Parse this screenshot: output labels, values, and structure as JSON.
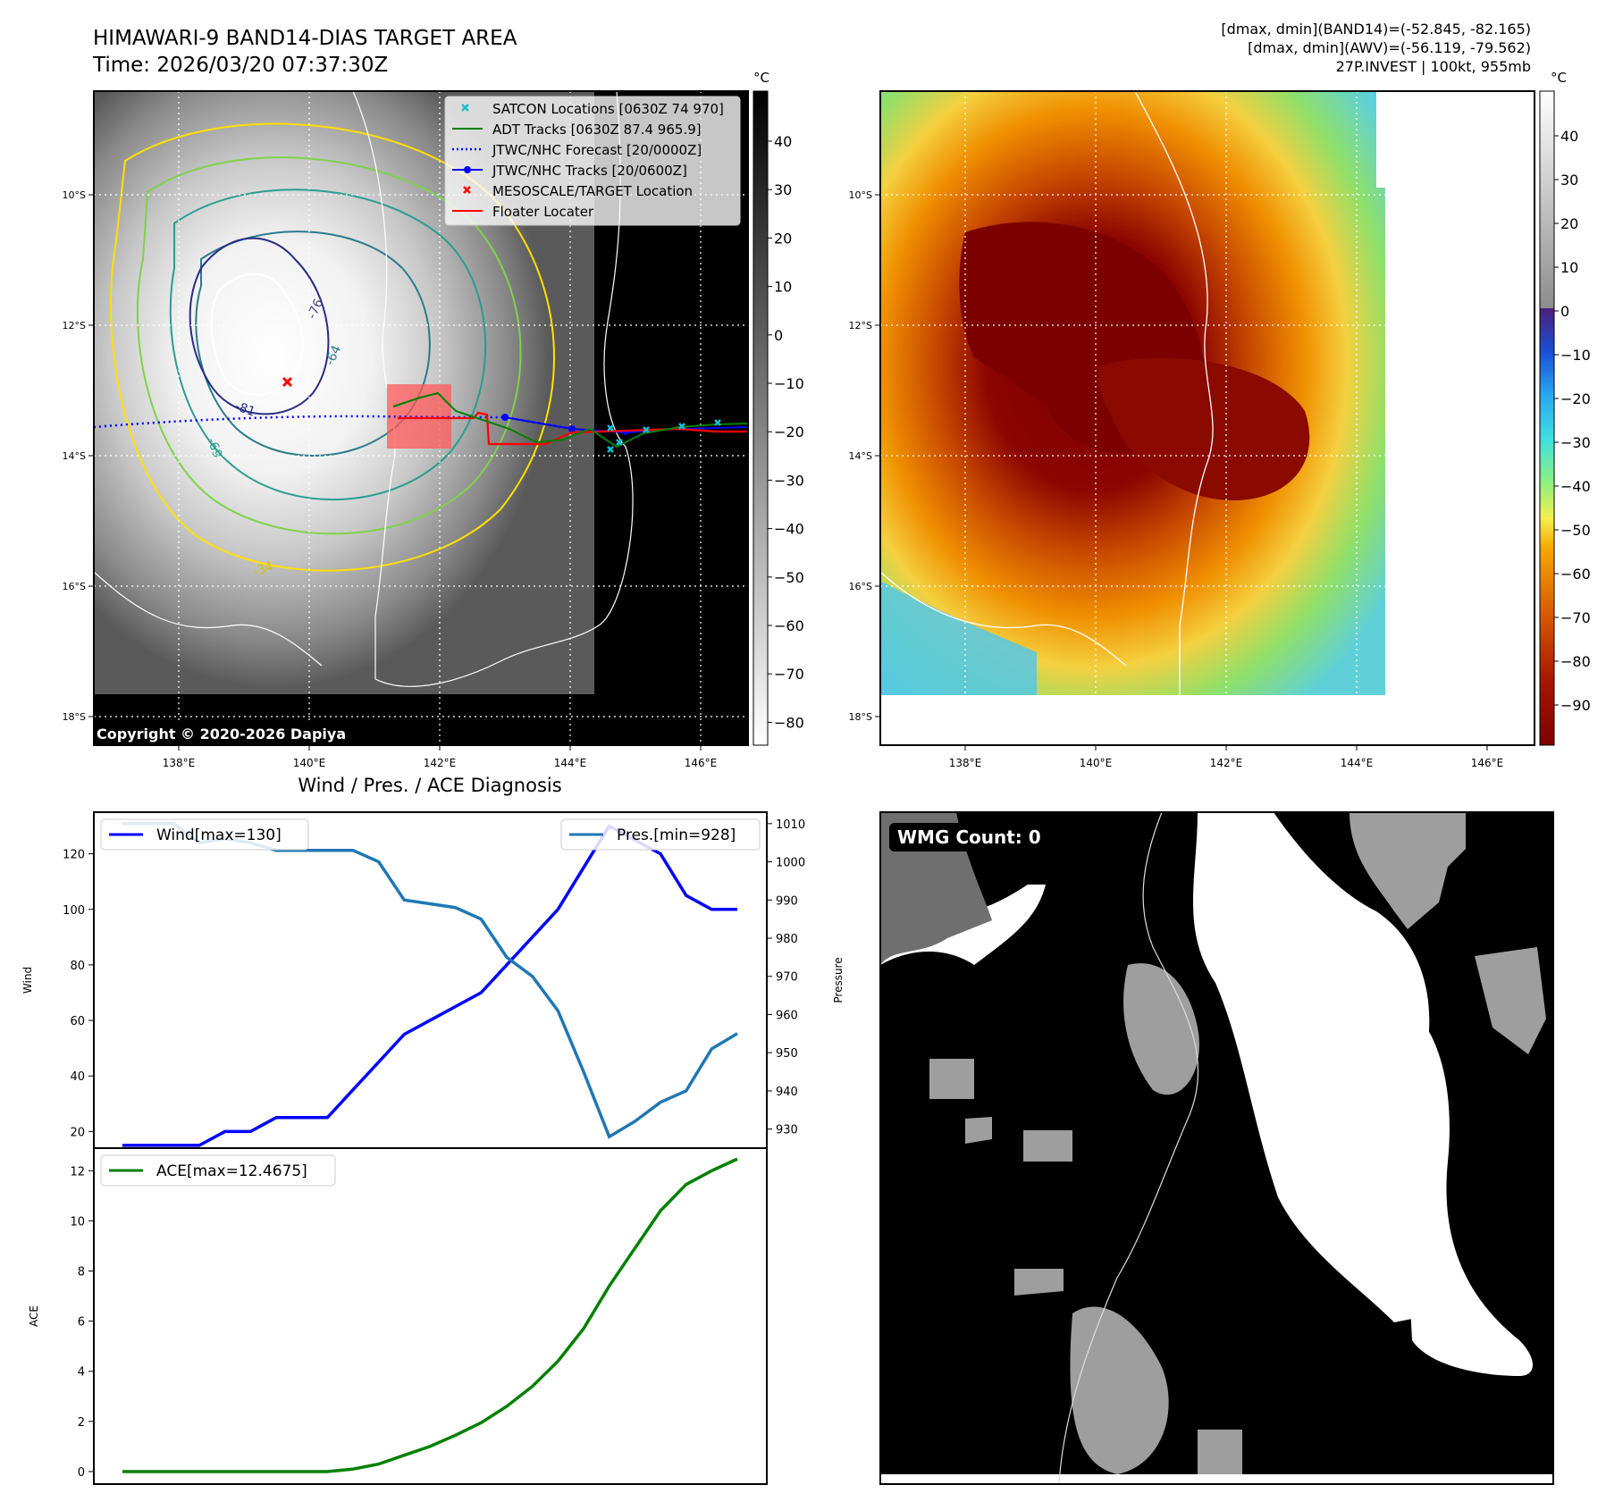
{
  "header": {
    "title_line1": "HIMAWARI-9 BAND14-DIAS TARGET AREA",
    "title_line2": "Time: 2026/03/20 07:37:30Z",
    "right_line1": "[dmax, dmin](BAND14)=(-52.845, -82.165)",
    "right_line2": "[dmax, dmin](AWV)=(-56.119, -79.562)",
    "right_line3": "27P.INVEST | 100kt, 955mb"
  },
  "map_axes": {
    "lon_labels": [
      "138°E",
      "140°E",
      "142°E",
      "144°E",
      "146°E"
    ],
    "lat_labels": [
      "10°S",
      "12°S",
      "14°S",
      "16°S",
      "18°S"
    ]
  },
  "left_colorbar": {
    "unit": "°C",
    "ticks": [
      "40",
      "30",
      "20",
      "10",
      "0",
      "−10",
      "−20",
      "−30",
      "−40",
      "−50",
      "−60",
      "−70",
      "−80"
    ]
  },
  "right_colorbar": {
    "unit": "°C",
    "ticks": [
      "40",
      "30",
      "20",
      "10",
      "0",
      "−10",
      "−20",
      "−30",
      "−40",
      "−50",
      "−60",
      "−70",
      "−80",
      "−90"
    ]
  },
  "legend": {
    "items": [
      {
        "label": "SATCON Locations [0630Z 74 970]",
        "color": "#17becf",
        "style": "x"
      },
      {
        "label": "ADT Tracks [0630Z 87.4 965.9]",
        "color": "#008000",
        "style": "line"
      },
      {
        "label": "JTWC/NHC Forecast [20/0000Z]",
        "color": "#0000ff",
        "style": "dotted"
      },
      {
        "label": "JTWC/NHC Tracks [20/0600Z]",
        "color": "#0000ff",
        "style": "line-dot"
      },
      {
        "label": "MESOSCALE/TARGET Location",
        "color": "#ff0000",
        "style": "x"
      },
      {
        "label": "Floater Locater",
        "color": "#ff0000",
        "style": "line"
      }
    ]
  },
  "contour_labels": [
    "-76",
    "-64",
    "-81",
    "-69",
    "-34"
  ],
  "copyright": "Copyright © 2020-2026 Dapiya",
  "diagnosis_title": "Wind / Pres. / ACE Diagnosis",
  "wmg_label": "WMG Count: 0",
  "colors": {
    "wind": "#0000ff",
    "pressure": "#1f77b4",
    "ace": "#008000",
    "adt": "#008000",
    "satcon": "#17becf",
    "floater": "#ff0000"
  },
  "chart_data": [
    {
      "type": "line",
      "title": "Wind / Pres. / ACE Diagnosis",
      "ylabel": "Wind",
      "ylabel_right": "Pressure",
      "ylim": [
        14,
        135
      ],
      "ylim_right": [
        925,
        1013
      ],
      "yticks": [
        20,
        40,
        60,
        80,
        100,
        120
      ],
      "yticks_right": [
        930,
        940,
        950,
        960,
        970,
        980,
        990,
        1000,
        1010
      ],
      "x": [
        0,
        1,
        2,
        3,
        4,
        5,
        6,
        7,
        8,
        9,
        10,
        11,
        12,
        13,
        14,
        15,
        16,
        17,
        18,
        19,
        20,
        21,
        22,
        23,
        24
      ],
      "series": [
        {
          "name": "Wind[max=130]",
          "axis": "left",
          "values": [
            15,
            15,
            15,
            15,
            20,
            20,
            25,
            25,
            25,
            35,
            45,
            55,
            60,
            65,
            70,
            80,
            90,
            100,
            115,
            130,
            125,
            120,
            105,
            100,
            100
          ]
        },
        {
          "name": "Pres.[min=928]",
          "axis": "right",
          "values": [
            1010,
            1010,
            1010,
            1005,
            1006,
            1005,
            1003,
            1003,
            1003,
            1003,
            1000,
            990,
            989,
            988,
            985,
            975,
            970,
            961,
            945,
            928,
            932,
            937,
            940,
            951,
            955
          ]
        }
      ]
    },
    {
      "type": "line",
      "ylabel": "ACE",
      "ylim": [
        -0.5,
        12.9
      ],
      "yticks": [
        0,
        2,
        4,
        6,
        8,
        10,
        12
      ],
      "x": [
        0,
        1,
        2,
        3,
        4,
        5,
        6,
        7,
        8,
        9,
        10,
        11,
        12,
        13,
        14,
        15,
        16,
        17,
        18,
        19,
        20,
        21,
        22,
        23,
        24
      ],
      "series": [
        {
          "name": "ACE[max=12.4675]",
          "values": [
            0,
            0,
            0,
            0,
            0,
            0,
            0,
            0,
            0,
            0.1,
            0.3,
            0.65,
            1.0,
            1.45,
            1.95,
            2.6,
            3.4,
            4.4,
            5.7,
            7.4,
            8.9,
            10.4,
            11.45,
            12.0,
            12.4675
          ]
        }
      ]
    }
  ]
}
